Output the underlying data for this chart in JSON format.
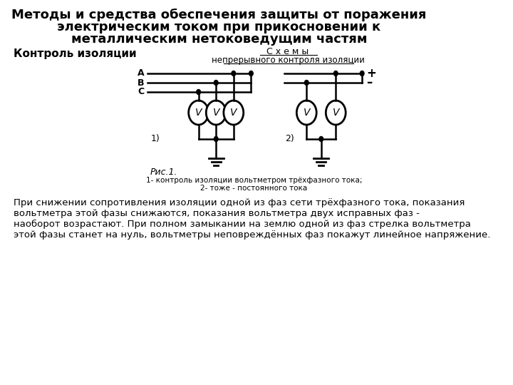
{
  "title_line1": "Методы и средства обеспечения защиты от поражения",
  "title_line2": "электрическим током при прикосновении к",
  "title_line3": "металлическим нетоковедущим частям",
  "subtitle_left": "Контроль изоляции",
  "schema_title1": "С х е м ы",
  "schema_title2": "непрерывного контроля изоляции",
  "label1": "1)",
  "label2": "2)",
  "fig_label": "Рис.1.",
  "caption1": "1- контроль изоляции вольтметром трёхфазного тока;",
  "caption2": "2- тоже - постоянного тока",
  "body_text": "При снижении сопротивления изоляции одной из фаз сети трёхфазного тока, показания\nвольтметра этой фазы снижаются, показания вольтметра двух исправных фаз -\nнаоборот возрастают. При полном замыкании на землю одной из фаз стрелка вольтметра\nэтой фазы станет на нуль, вольтметры неповреждённых фаз покажут линейное напряжение.",
  "bg_color": "#ffffff",
  "line_color": "#000000",
  "title_fontsize": 13,
  "body_fontsize": 9.5
}
